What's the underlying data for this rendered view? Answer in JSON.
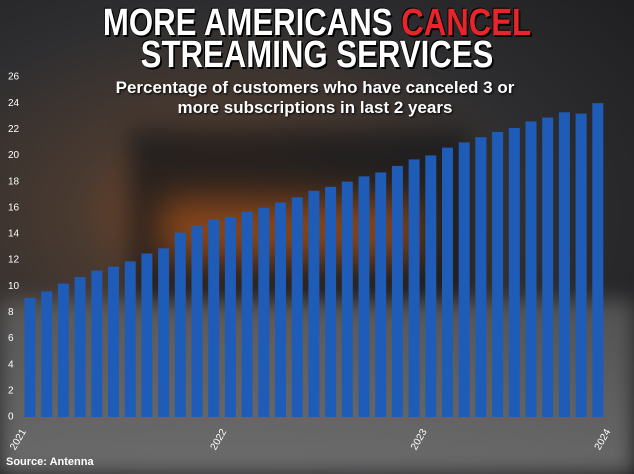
{
  "title_start": "MORE AMERICANS",
  "title_highlight": "CANCEL",
  "title_end": "STREAMING SERVICES",
  "chart_data": {
    "type": "bar",
    "subtitle": "Percentage of customers who have canceled 3 or more subscriptions in last 2 years",
    "source": "Source: Antenna",
    "categories": [
      "2021",
      null,
      null,
      null,
      null,
      null,
      null,
      null,
      null,
      null,
      null,
      null,
      "2022",
      null,
      null,
      null,
      null,
      null,
      null,
      null,
      null,
      null,
      null,
      null,
      "2023",
      null,
      null,
      null,
      null,
      null,
      null,
      null,
      null,
      null,
      null,
      "2024"
    ],
    "values": [
      9.1,
      9.6,
      10.2,
      10.7,
      11.2,
      11.5,
      11.9,
      12.5,
      12.9,
      14.1,
      14.6,
      15.1,
      15.3,
      15.7,
      16.0,
      16.4,
      16.8,
      17.3,
      17.6,
      18.0,
      18.4,
      18.7,
      19.2,
      19.7,
      20.0,
      20.6,
      21.0,
      21.4,
      21.8,
      22.1,
      22.6,
      22.9,
      23.3,
      23.2,
      24.0,
      null
    ],
    "color": "#1f5cb8",
    "ylim": [
      0,
      26
    ],
    "yticks": [
      0,
      2,
      4,
      6,
      8,
      10,
      12,
      14,
      16,
      18,
      20,
      22,
      24,
      26
    ],
    "grid": false
  }
}
